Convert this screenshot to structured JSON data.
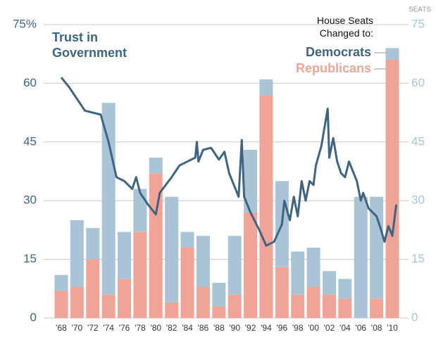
{
  "chart_data": {
    "type": "bar",
    "line_label": "Trust in Government",
    "legend_title": "House Seats Changed to:",
    "y2_label": "SEATS",
    "categories": [
      "'68",
      "'70",
      "'72",
      "'74",
      "'76",
      "'78",
      "'80",
      "'82",
      "'84",
      "'86",
      "'88",
      "'90",
      "'92",
      "'94",
      "'96",
      "'98",
      "'00",
      "'02",
      "'04",
      "'06",
      "'08",
      "'10"
    ],
    "series": [
      {
        "name": "Republicans",
        "color": "#f0a498",
        "axis": "y2",
        "values": [
          7,
          8,
          15,
          6,
          10,
          22,
          37,
          4,
          18,
          8,
          3,
          6,
          27,
          57,
          13,
          6,
          8,
          6,
          5,
          0,
          5,
          66
        ]
      },
      {
        "name": "Democrats",
        "color": "#a9c4d6",
        "axis": "y2",
        "values": [
          4,
          17,
          8,
          49,
          12,
          11,
          4,
          27,
          4,
          13,
          6,
          15,
          16,
          4,
          22,
          11,
          10,
          6,
          5,
          31,
          26,
          3
        ]
      },
      {
        "name": "Trust in Government",
        "type": "line",
        "color": "#3e6482",
        "x": [
          1968,
          1969,
          1971,
          1973,
          1974,
          1975,
          1976,
          1977,
          1977.5,
          1978,
          1979,
          1980,
          1980.5,
          1982,
          1983,
          1985,
          1985.2,
          1985.4,
          1986,
          1987,
          1988,
          1988.7,
          1989.3,
          1990.5,
          1990.9,
          1991.2,
          1992,
          1993,
          1994,
          1995,
          1996,
          1996.3,
          1997,
          1997.5,
          1998,
          1998.5,
          1999,
          1999.5,
          2000,
          2000.3,
          2001,
          2001.8,
          2002,
          2002.5,
          2003,
          2003.5,
          2004,
          2004.5,
          2005.5,
          2006,
          2006.3,
          2007,
          2008,
          2008.5,
          2009,
          2009.5,
          2010,
          2010.5
        ],
        "values": [
          61.5,
          59,
          53,
          52,
          45,
          36,
          35,
          33,
          36,
          32,
          29,
          26.5,
          32,
          36,
          39,
          41,
          45,
          40,
          43,
          43.5,
          40.5,
          42.5,
          37,
          31,
          45.5,
          31,
          27,
          23,
          18.5,
          19.5,
          24,
          30,
          25,
          31,
          26,
          35,
          30,
          35,
          34,
          39,
          44,
          53.5,
          41,
          46,
          40,
          37,
          36,
          40,
          35,
          30,
          32,
          28,
          26,
          23,
          19.5,
          23.5,
          21,
          29
        ]
      }
    ],
    "xlim": [
      1968,
      2010
    ],
    "ylim": [
      0,
      75
    ],
    "yticks": [
      0,
      15,
      30,
      45,
      60,
      {
        "value": 75,
        "label": "75%"
      }
    ],
    "y2lim": [
      0,
      75
    ],
    "y2ticks": [
      0,
      15,
      30,
      45,
      60,
      75
    ],
    "grid": true
  }
}
